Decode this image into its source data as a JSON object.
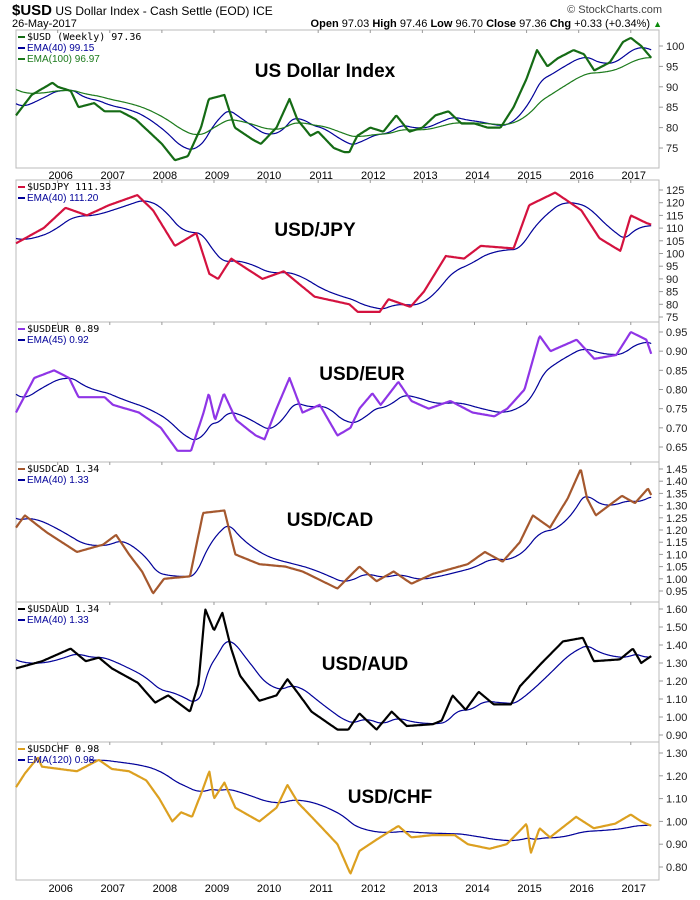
{
  "header": {
    "symbol": "$USD",
    "name": "US Dollar Index - Cash Settle (EOD)",
    "exchange": "ICE",
    "date": "26-May-2017",
    "brand": "© StockCharts.com",
    "open_label": "Open",
    "open": "97.03",
    "high_label": "High",
    "high": "97.46",
    "low_label": "Low",
    "low": "96.70",
    "close_label": "Close",
    "close": "97.36",
    "chg_label": "Chg",
    "chg": "+0.33 (+0.34%)",
    "chg_icon": "up-triangle-icon"
  },
  "colors": {
    "ema": "#000099",
    "usd": "#156b15",
    "ema100": "#1b7a1b",
    "jpy": "#d4123f",
    "eur": "#8f35e6",
    "cad": "#a5582e",
    "aud": "#000000",
    "chf": "#dca020",
    "grid": "#bbbbbb"
  },
  "chart_data": [
    {
      "type": "line",
      "title": "US Dollar Index",
      "legend": [
        "$USD (Weekly) 97.36",
        "EMA(40) 99.15",
        "EMA(100) 96.97"
      ],
      "ylim": [
        70,
        104
      ],
      "yticks": [
        75,
        80,
        85,
        90,
        95,
        100
      ],
      "decimals": 0,
      "x": [
        2005.2,
        2005.5,
        2005.9,
        2006.0,
        2006.25,
        2006.4,
        2006.7,
        2006.9,
        2007.2,
        2007.5,
        2007.75,
        2008.0,
        2008.25,
        2008.5,
        2008.75,
        2008.9,
        2009.2,
        2009.4,
        2009.75,
        2009.9,
        2010.2,
        2010.45,
        2010.6,
        2010.85,
        2011.0,
        2011.3,
        2011.5,
        2011.6,
        2011.75,
        2012.0,
        2012.25,
        2012.5,
        2012.75,
        2013.0,
        2013.25,
        2013.5,
        2013.75,
        2014.0,
        2014.25,
        2014.5,
        2014.75,
        2015.0,
        2015.2,
        2015.4,
        2015.6,
        2015.9,
        2016.1,
        2016.3,
        2016.6,
        2016.85,
        2017.0,
        2017.2,
        2017.4
      ],
      "values": [
        83,
        88,
        91,
        90,
        89,
        85,
        86,
        84,
        84,
        82,
        79,
        76,
        72,
        73,
        80,
        87,
        88,
        80,
        77,
        76,
        80,
        87,
        82,
        78,
        79,
        75,
        74,
        74,
        78,
        80,
        79,
        83,
        79,
        80,
        83,
        84,
        81,
        81,
        80,
        80,
        85,
        92,
        99,
        95,
        97,
        99,
        98,
        94,
        96,
        101,
        102,
        100,
        97
      ],
      "emas": [
        {
          "period": 40,
          "seed": 86,
          "color": "ema"
        },
        {
          "period": 100,
          "seed": 89.5,
          "color": "ema100"
        }
      ],
      "color": "usd"
    },
    {
      "type": "line",
      "title": "USD/JPY",
      "legend": [
        "$USDJPY 111.33",
        "EMA(40) 111.20"
      ],
      "ylim": [
        73,
        127
      ],
      "yticks": [
        75,
        80,
        85,
        90,
        95,
        100,
        105,
        110,
        115,
        120,
        125
      ],
      "decimals": 0,
      "x": [
        2005.2,
        2005.73,
        2006.15,
        2006.56,
        2006.98,
        2007.53,
        2007.83,
        2008.25,
        2008.66,
        2008.91,
        2009.08,
        2009.33,
        2009.93,
        2010.34,
        2010.93,
        2011.6,
        2011.76,
        2012.18,
        2012.35,
        2012.77,
        2013.03,
        2013.45,
        2013.8,
        2014.12,
        2014.75,
        2015.05,
        2015.55,
        2016.05,
        2016.4,
        2016.8,
        2017.0,
        2017.3,
        2017.4
      ],
      "values": [
        104,
        110,
        118,
        115,
        119,
        123,
        117,
        103,
        108,
        92,
        90,
        98,
        90,
        93,
        83,
        80,
        77,
        77,
        82,
        79,
        85,
        99,
        98,
        103,
        102,
        119,
        124,
        117,
        106,
        101,
        115,
        112,
        111.33
      ],
      "emas": [
        {
          "period": 40,
          "seed": 106,
          "color": "ema"
        }
      ],
      "color": "jpy"
    },
    {
      "type": "line",
      "title": "USD/EUR",
      "legend": [
        "$USDEUR 0.89",
        "EMA(45) 0.92"
      ],
      "ylim": [
        0.62,
        0.96
      ],
      "yticks": [
        0.65,
        0.7,
        0.75,
        0.8,
        0.85,
        0.9,
        0.95
      ],
      "decimals": 2,
      "x": [
        2005.2,
        2005.55,
        2005.93,
        2006.22,
        2006.4,
        2006.9,
        2007.06,
        2007.56,
        2007.98,
        2008.3,
        2008.56,
        2008.8,
        2008.9,
        2009.02,
        2009.19,
        2009.43,
        2009.8,
        2009.97,
        2010.2,
        2010.45,
        2010.7,
        2011.03,
        2011.37,
        2011.62,
        2011.79,
        2012.04,
        2012.2,
        2012.54,
        2012.79,
        2013.12,
        2013.54,
        2013.96,
        2014.38,
        2014.63,
        2014.96,
        2015.25,
        2015.46,
        2015.96,
        2016.3,
        2016.72,
        2017.0,
        2017.3,
        2017.4
      ],
      "values": [
        0.74,
        0.83,
        0.85,
        0.83,
        0.78,
        0.78,
        0.76,
        0.74,
        0.7,
        0.64,
        0.64,
        0.74,
        0.79,
        0.72,
        0.79,
        0.72,
        0.68,
        0.67,
        0.75,
        0.83,
        0.74,
        0.76,
        0.68,
        0.7,
        0.75,
        0.79,
        0.76,
        0.82,
        0.77,
        0.75,
        0.77,
        0.74,
        0.73,
        0.75,
        0.8,
        0.94,
        0.9,
        0.93,
        0.88,
        0.89,
        0.95,
        0.93,
        0.89
      ],
      "emas": [
        {
          "period": 45,
          "seed": 0.79,
          "color": "ema"
        }
      ],
      "color": "eur"
    },
    {
      "type": "line",
      "title": "USD/CAD",
      "legend": [
        "$USDCAD 1.34",
        "EMA(40) 1.33"
      ],
      "ylim": [
        0.92,
        1.47
      ],
      "yticks": [
        0.95,
        1.0,
        1.05,
        1.1,
        1.15,
        1.2,
        1.25,
        1.3,
        1.35,
        1.4,
        1.45
      ],
      "decimals": 2,
      "x": [
        2005.2,
        2005.37,
        2005.79,
        2006.37,
        2006.87,
        2007.12,
        2007.37,
        2007.62,
        2007.83,
        2008.04,
        2008.54,
        2008.79,
        2009.2,
        2009.41,
        2009.87,
        2010.37,
        2010.7,
        2011.37,
        2011.79,
        2012.12,
        2012.45,
        2012.79,
        2013.2,
        2013.87,
        2014.2,
        2014.54,
        2014.87,
        2015.12,
        2015.45,
        2015.79,
        2016.04,
        2016.16,
        2016.33,
        2016.83,
        2017.08,
        2017.33,
        2017.4
      ],
      "values": [
        1.21,
        1.26,
        1.19,
        1.11,
        1.14,
        1.18,
        1.1,
        1.03,
        0.94,
        1.0,
        1.01,
        1.27,
        1.28,
        1.1,
        1.06,
        1.05,
        1.03,
        0.96,
        1.05,
        0.99,
        1.03,
        0.98,
        1.02,
        1.06,
        1.11,
        1.07,
        1.15,
        1.26,
        1.21,
        1.33,
        1.45,
        1.33,
        1.26,
        1.34,
        1.31,
        1.37,
        1.34
      ],
      "emas": [
        {
          "period": 40,
          "seed": 1.25,
          "color": "ema"
        }
      ],
      "color": "cad"
    },
    {
      "type": "line",
      "title": "USD/AUD",
      "legend": [
        "$USDAUD 1.34",
        "EMA(40) 1.33"
      ],
      "ylim": [
        0.87,
        1.62
      ],
      "yticks": [
        0.9,
        1.0,
        1.1,
        1.2,
        1.3,
        1.4,
        1.5,
        1.6
      ],
      "decimals": 2,
      "x": [
        2005.2,
        2005.7,
        2006.25,
        2006.54,
        2006.79,
        2007.04,
        2007.54,
        2007.87,
        2008.12,
        2008.54,
        2008.7,
        2008.83,
        2009.0,
        2009.16,
        2009.33,
        2009.5,
        2009.87,
        2010.2,
        2010.41,
        2010.62,
        2010.87,
        2011.37,
        2011.58,
        2011.79,
        2012.12,
        2012.41,
        2012.7,
        2013.2,
        2013.37,
        2013.58,
        2013.83,
        2014.08,
        2014.37,
        2014.7,
        2014.87,
        2015.29,
        2015.7,
        2016.08,
        2016.29,
        2016.79,
        2017.04,
        2017.2,
        2017.4
      ],
      "values": [
        1.27,
        1.31,
        1.38,
        1.31,
        1.33,
        1.27,
        1.19,
        1.08,
        1.12,
        1.03,
        1.18,
        1.6,
        1.48,
        1.58,
        1.38,
        1.23,
        1.09,
        1.12,
        1.21,
        1.13,
        1.03,
        0.93,
        0.93,
        1.02,
        0.93,
        1.03,
        0.95,
        0.96,
        0.98,
        1.12,
        1.04,
        1.14,
        1.07,
        1.07,
        1.17,
        1.3,
        1.42,
        1.44,
        1.31,
        1.32,
        1.38,
        1.3,
        1.34
      ],
      "emas": [
        {
          "period": 40,
          "seed": 1.32,
          "color": "ema"
        }
      ],
      "color": "aud"
    },
    {
      "type": "line",
      "title": "USD/CHF",
      "legend": [
        "$USDCHF 0.98",
        "EMA(120) 0.98"
      ],
      "ylim": [
        0.74,
        1.32
      ],
      "yticks": [
        0.8,
        0.9,
        1.0,
        1.1,
        1.2,
        1.3
      ],
      "decimals": 2,
      "x": [
        2005.2,
        2005.37,
        2005.62,
        2005.7,
        2006.37,
        2006.79,
        2007.04,
        2007.37,
        2007.7,
        2007.95,
        2008.2,
        2008.37,
        2008.58,
        2008.75,
        2008.91,
        2009.0,
        2009.2,
        2009.41,
        2009.87,
        2010.2,
        2010.41,
        2010.62,
        2011.04,
        2011.37,
        2011.62,
        2011.79,
        2012.12,
        2012.54,
        2012.79,
        2013.2,
        2013.62,
        2013.87,
        2014.29,
        2014.62,
        2015.0,
        2015.08,
        2015.25,
        2015.45,
        2015.95,
        2016.29,
        2016.7,
        2017.0,
        2017.2,
        2017.4
      ],
      "values": [
        1.15,
        1.21,
        1.28,
        1.24,
        1.22,
        1.27,
        1.23,
        1.22,
        1.18,
        1.1,
        1.0,
        1.04,
        1.02,
        1.12,
        1.22,
        1.1,
        1.17,
        1.06,
        1.0,
        1.06,
        1.16,
        1.08,
        0.98,
        0.9,
        0.77,
        0.87,
        0.92,
        0.98,
        0.93,
        0.94,
        0.94,
        0.9,
        0.88,
        0.9,
        0.99,
        0.86,
        0.97,
        0.93,
        1.02,
        0.97,
        0.99,
        1.03,
        1.0,
        0.98
      ],
      "emas": [
        {
          "period": 120,
          "seed": 1.27,
          "color": "ema",
          "start": 2006.6
        }
      ],
      "color": "chf"
    }
  ],
  "xaxis": {
    "years": [
      "2006",
      "2007",
      "2008",
      "2009",
      "2010",
      "2011",
      "2012",
      "2013",
      "2014",
      "2015",
      "2016",
      "2017"
    ]
  }
}
